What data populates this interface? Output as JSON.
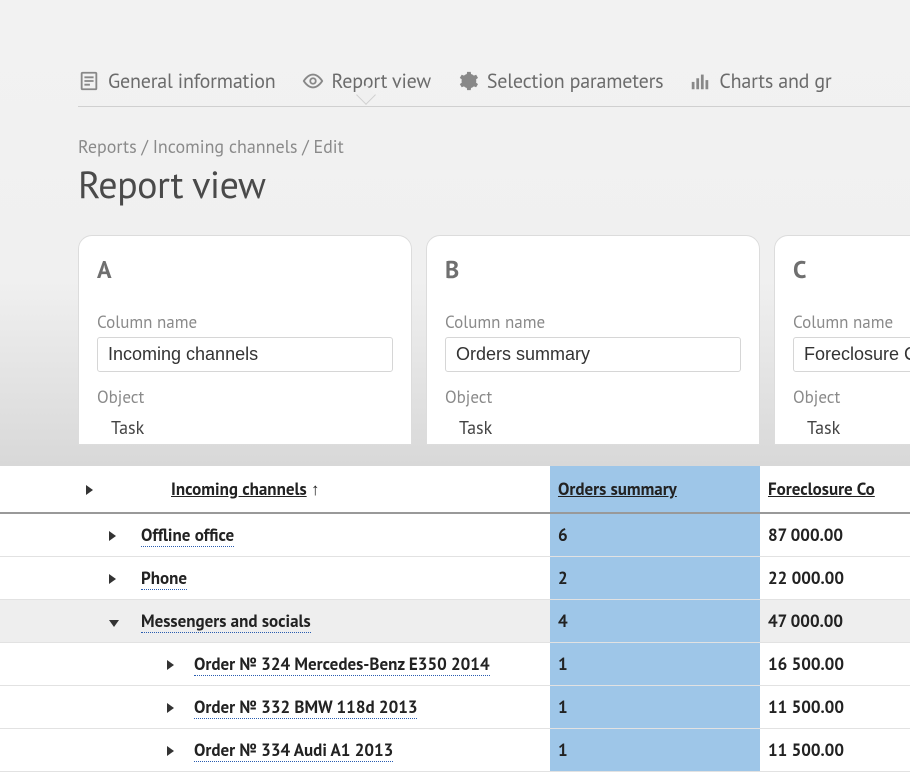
{
  "tabs": [
    {
      "id": "general",
      "label": "General information",
      "icon": "doc"
    },
    {
      "id": "report",
      "label": "Report view",
      "icon": "eye",
      "active": true
    },
    {
      "id": "select",
      "label": "Selection parameters",
      "icon": "gear"
    },
    {
      "id": "charts",
      "label": "Charts and gr",
      "icon": "bars"
    }
  ],
  "breadcrumb": "Reports / Incoming channels / Edit",
  "page_title": "Report view",
  "cards": [
    {
      "letter": "A",
      "name_label": "Column name",
      "name_value": "Incoming channels",
      "object_label": "Object",
      "object_value": "Task"
    },
    {
      "letter": "B",
      "name_label": "Column name",
      "name_value": "Orders summary",
      "object_label": "Object",
      "object_value": "Task"
    },
    {
      "letter": "C",
      "name_label": "Column name",
      "name_value": "Foreclosure Co",
      "object_label": "Object",
      "object_value": "Task"
    }
  ],
  "table": {
    "sort_indicator": "↑",
    "headers": {
      "main": "Incoming channels",
      "orders": "Orders summary",
      "fore": "Foreclosure Co"
    },
    "rows": [
      {
        "level": 1,
        "expanded": false,
        "label": "Offline office",
        "orders": "6",
        "fore": "87 000.00",
        "link": true
      },
      {
        "level": 1,
        "expanded": false,
        "label": "Phone",
        "orders": "2",
        "fore": "22 000.00",
        "link": true
      },
      {
        "level": 1,
        "expanded": true,
        "label": "Messengers and socials",
        "orders": "4",
        "fore": "47 000.00",
        "link": true,
        "shaded": true
      },
      {
        "level": 2,
        "expanded": false,
        "label": "Order № 324 Mercedes-Benz E350 2014",
        "orders": "1",
        "fore": "16 500.00",
        "link": true
      },
      {
        "level": 2,
        "expanded": false,
        "label": "Order № 332 BMW 118d 2013",
        "orders": "1",
        "fore": "11 500.00",
        "link": true
      },
      {
        "level": 2,
        "expanded": false,
        "label": "Order № 334 Audi A1 2013",
        "orders": "1",
        "fore": "11 500.00",
        "link": true
      }
    ]
  },
  "colors": {
    "highlight": "#9ec6e8",
    "link": "#2a5db0",
    "muted": "#8a8a8a"
  }
}
